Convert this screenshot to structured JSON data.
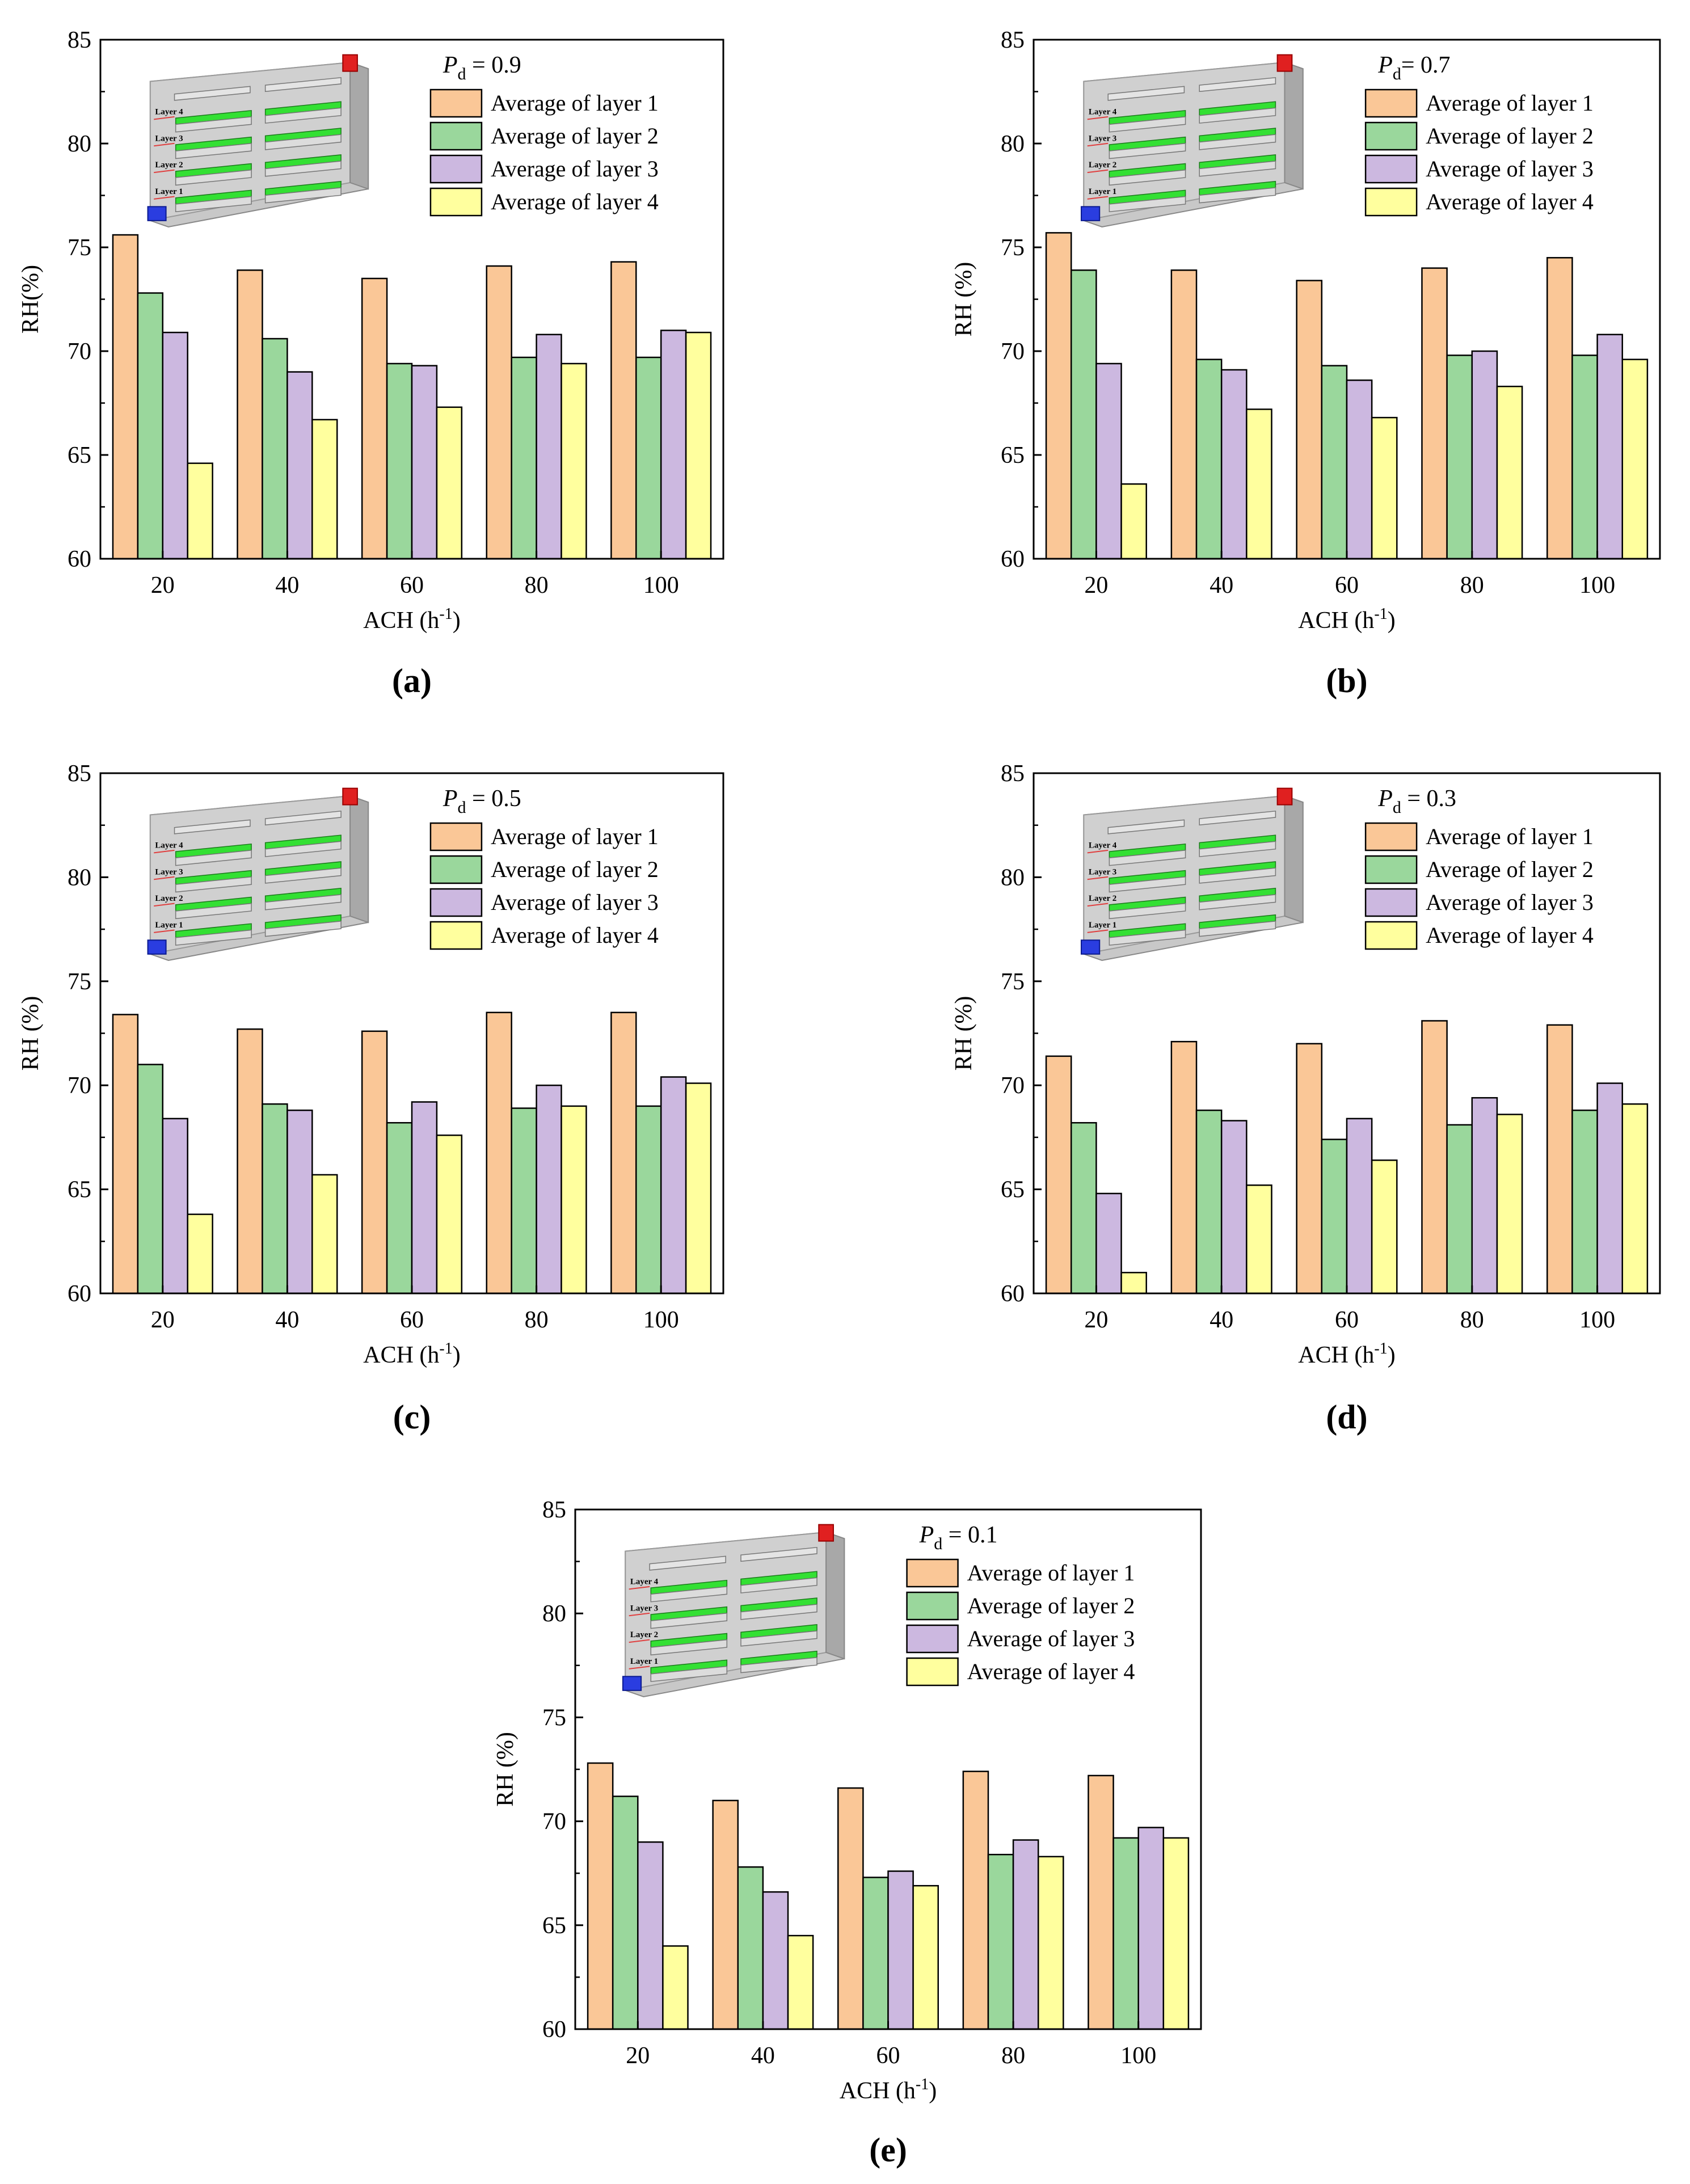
{
  "figure": {
    "colors": {
      "layer1": "#FAC797",
      "layer2": "#9AD79C",
      "layer3": "#CCB8E0",
      "layer4": "#FFFF9E",
      "axis": "#000000"
    }
  },
  "chart_data": [
    {
      "id": "a",
      "type": "bar",
      "panel_label": "(a)",
      "pd_symbol": "P",
      "pd_subscript": "d",
      "pd_text": " = 0.9",
      "xlabel": "ACH (h",
      "xlabel_sup": "-1",
      "xlabel_end": ")",
      "ylabel": "RH(%)",
      "ylim": [
        60,
        85
      ],
      "yticks": [
        "60",
        "65",
        "70",
        "75",
        "80",
        "85"
      ],
      "categories": [
        "20",
        "40",
        "60",
        "80",
        "100"
      ],
      "series": [
        {
          "name": "Average of layer 1",
          "values": [
            75.6,
            73.9,
            73.5,
            74.1,
            74.3
          ]
        },
        {
          "name": "Average of layer 2",
          "values": [
            72.8,
            70.6,
            69.4,
            69.7,
            69.7
          ]
        },
        {
          "name": "Average of layer 3",
          "values": [
            70.9,
            69.0,
            69.3,
            70.8,
            71.0
          ]
        },
        {
          "name": "Average of layer 4",
          "values": [
            64.6,
            66.7,
            67.3,
            69.4,
            70.9
          ]
        }
      ],
      "inset_labels": [
        "Layer 4",
        "Layer 3",
        "Layer 2",
        "Layer 1"
      ]
    },
    {
      "id": "b",
      "type": "bar",
      "panel_label": "(b)",
      "pd_symbol": "P",
      "pd_subscript": "d",
      "pd_text": "= 0.7",
      "xlabel": "ACH (h",
      "xlabel_sup": "-1",
      "xlabel_end": ")",
      "ylabel": "RH (%)",
      "ylim": [
        60,
        85
      ],
      "yticks": [
        "60",
        "65",
        "70",
        "75",
        "80",
        "85"
      ],
      "categories": [
        "20",
        "40",
        "60",
        "80",
        "100"
      ],
      "series": [
        {
          "name": "Average of layer 1",
          "values": [
            75.7,
            73.9,
            73.4,
            74.0,
            74.5
          ]
        },
        {
          "name": "Average of layer 2",
          "values": [
            73.9,
            69.6,
            69.3,
            69.8,
            69.8
          ]
        },
        {
          "name": "Average of layer 3",
          "values": [
            69.4,
            69.1,
            68.6,
            70.0,
            70.8
          ]
        },
        {
          "name": "Average of layer 4",
          "values": [
            63.6,
            67.2,
            66.8,
            68.3,
            69.6
          ]
        }
      ],
      "inset_labels": [
        "Layer 4",
        "Layer 3",
        "Layer 2",
        "Layer 1"
      ]
    },
    {
      "id": "c",
      "type": "bar",
      "panel_label": "(c)",
      "pd_symbol": "P",
      "pd_subscript": "d",
      "pd_text": " = 0.5",
      "xlabel": "ACH (h",
      "xlabel_sup": "-1",
      "xlabel_end": ")",
      "ylabel": "RH (%)",
      "ylim": [
        60,
        85
      ],
      "yticks": [
        "60",
        "65",
        "70",
        "75",
        "80",
        "85"
      ],
      "categories": [
        "20",
        "40",
        "60",
        "80",
        "100"
      ],
      "series": [
        {
          "name": "Average of layer 1",
          "values": [
            73.4,
            72.7,
            72.6,
            73.5,
            73.5
          ]
        },
        {
          "name": "Average of layer 2",
          "values": [
            71.0,
            69.1,
            68.2,
            68.9,
            69.0
          ]
        },
        {
          "name": "Average of layer 3",
          "values": [
            68.4,
            68.8,
            69.2,
            70.0,
            70.4
          ]
        },
        {
          "name": "Average of layer 4",
          "values": [
            63.8,
            65.7,
            67.6,
            69.0,
            70.1
          ]
        }
      ],
      "inset_labels": [
        "Layer 4",
        "Layer 3",
        "Layer 2",
        "Layer 1"
      ]
    },
    {
      "id": "d",
      "type": "bar",
      "panel_label": "(d)",
      "pd_symbol": "P",
      "pd_subscript": "d",
      "pd_text": " = 0.3",
      "xlabel": "ACH (h",
      "xlabel_sup": "-1",
      "xlabel_end": ")",
      "ylabel": "RH (%)",
      "ylim": [
        60,
        85
      ],
      "yticks": [
        "60",
        "65",
        "70",
        "75",
        "80",
        "85"
      ],
      "categories": [
        "20",
        "40",
        "60",
        "80",
        "100"
      ],
      "series": [
        {
          "name": "Average of layer 1",
          "values": [
            71.4,
            72.1,
            72.0,
            73.1,
            72.9
          ]
        },
        {
          "name": "Average of layer 2",
          "values": [
            68.2,
            68.8,
            67.4,
            68.1,
            68.8
          ]
        },
        {
          "name": "Average of layer 3",
          "values": [
            64.8,
            68.3,
            68.4,
            69.4,
            70.1
          ]
        },
        {
          "name": "Average of layer 4",
          "values": [
            61.0,
            65.2,
            66.4,
            68.6,
            69.1
          ]
        }
      ],
      "inset_labels": [
        "Layer 4",
        "Layer 3",
        "Layer 2",
        "Layer 1"
      ]
    },
    {
      "id": "e",
      "type": "bar",
      "panel_label": "(e)",
      "pd_symbol": "P",
      "pd_subscript": "d",
      "pd_text": " = 0.1",
      "xlabel": "ACH (h",
      "xlabel_sup": "-1",
      "xlabel_end": ")",
      "ylabel": "RH (%)",
      "ylim": [
        60,
        85
      ],
      "yticks": [
        "60",
        "65",
        "70",
        "75",
        "80",
        "85"
      ],
      "categories": [
        "20",
        "40",
        "60",
        "80",
        "100"
      ],
      "series": [
        {
          "name": "Average of layer 1",
          "values": [
            72.8,
            71.0,
            71.6,
            72.4,
            72.2
          ]
        },
        {
          "name": "Average of layer 2",
          "values": [
            71.2,
            67.8,
            67.3,
            68.4,
            69.2
          ]
        },
        {
          "name": "Average of layer 3",
          "values": [
            69.0,
            66.6,
            67.6,
            69.1,
            69.7
          ]
        },
        {
          "name": "Average of layer 4",
          "values": [
            64.0,
            64.5,
            66.9,
            68.3,
            69.2
          ]
        }
      ],
      "inset_labels": [
        "Layer 4",
        "Layer 3",
        "Layer 2",
        "Layer 1"
      ]
    }
  ]
}
